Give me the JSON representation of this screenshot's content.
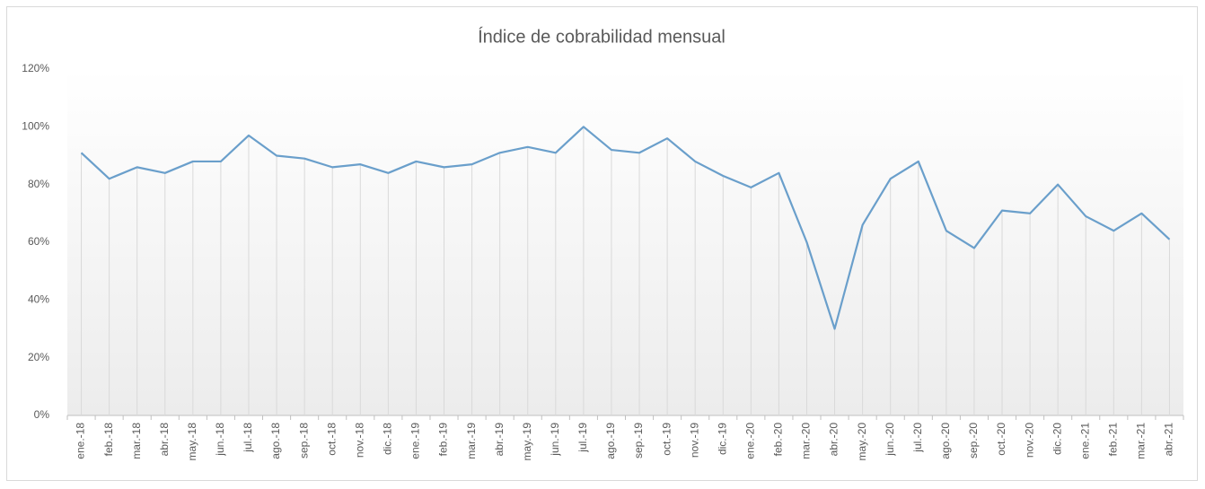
{
  "chart_data": {
    "type": "line",
    "title": "Índice de cobrabilidad mensual",
    "categories": [
      "ene.-18",
      "feb.-18",
      "mar.-18",
      "abr.-18",
      "may.-18",
      "jun.-18",
      "jul.-18",
      "ago.-18",
      "sep.-18",
      "oct.-18",
      "nov.-18",
      "dic.-18",
      "ene.-19",
      "feb.-19",
      "mar.-19",
      "abr.-19",
      "may.-19",
      "jun.-19",
      "jul.-19",
      "ago.-19",
      "sep.-19",
      "oct.-19",
      "nov.-19",
      "dic.-19",
      "ene.-20",
      "feb.-20",
      "mar.-20",
      "abr.-20",
      "may.-20",
      "jun.-20",
      "jul.-20",
      "ago.-20",
      "sep.-20",
      "oct.-20",
      "nov.-20",
      "dic.-20",
      "ene.-21",
      "feb.-21",
      "mar.-21",
      "abr.-21"
    ],
    "series": [
      {
        "name": "Índice de cobrabilidad",
        "color": "#6a9fcb",
        "values": [
          91,
          82,
          86,
          84,
          88,
          88,
          97,
          90,
          89,
          86,
          87,
          84,
          88,
          86,
          87,
          91,
          93,
          91,
          100,
          92,
          91,
          96,
          88,
          83,
          79,
          84,
          60,
          30,
          66,
          82,
          88,
          64,
          58,
          71,
          70,
          80,
          69,
          64,
          70,
          61
        ]
      }
    ],
    "ylim": [
      0,
      120
    ],
    "yticks": [
      {
        "value": 0,
        "label": "0%"
      },
      {
        "value": 20,
        "label": "20%"
      },
      {
        "value": 40,
        "label": "40%"
      },
      {
        "value": 60,
        "label": "60%"
      },
      {
        "value": 80,
        "label": "80%"
      },
      {
        "value": 100,
        "label": "100%"
      },
      {
        "value": 120,
        "label": "120%"
      }
    ],
    "drop_lines": true
  }
}
